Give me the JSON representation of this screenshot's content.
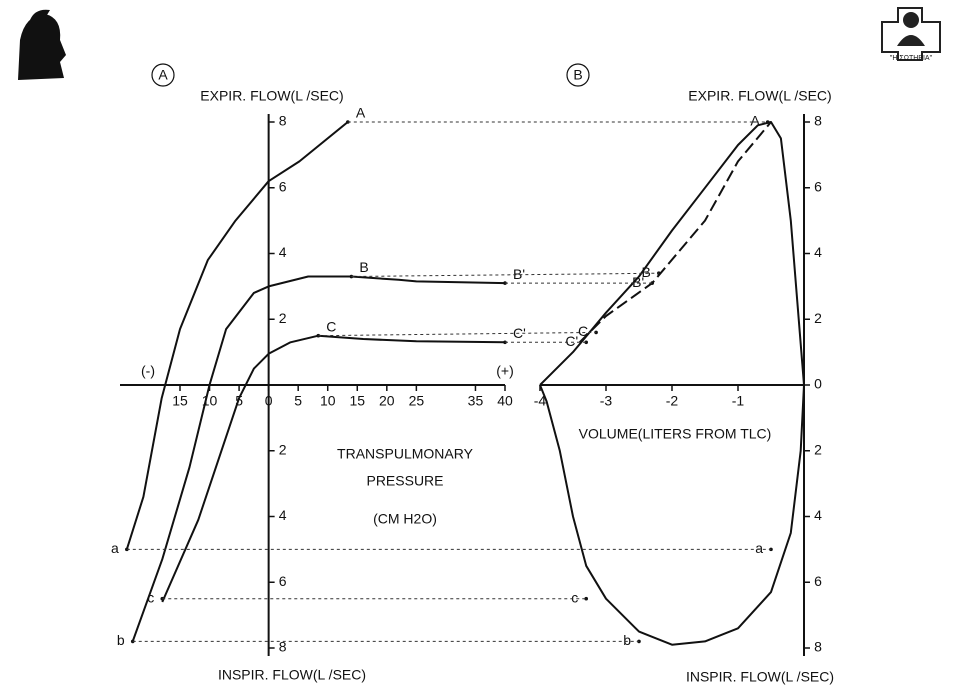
{
  "logo_text": "\"Η ΣΩΤΗΡΙΑ\"",
  "chart_data": [
    {
      "type": "line",
      "panel": "A",
      "y_label": "EXPIR. FLOW(L /SEC)",
      "y_label_bottom": "INSPIR. FLOW(L /SEC)",
      "x_label": [
        "TRANSPULMONARY",
        "PRESSURE",
        "(CM H2O)"
      ],
      "x_sign_labels": [
        "(-)",
        "(+)"
      ],
      "xlim": [
        -26,
        40
      ],
      "ylim": [
        -8,
        8
      ],
      "xticks": [
        {
          "value": -15,
          "label": "15"
        },
        {
          "value": -10,
          "label": "10"
        },
        {
          "value": -5,
          "label": "5"
        },
        0,
        5,
        10,
        15,
        20,
        25,
        35,
        40
      ],
      "yticks": [
        {
          "value": -8,
          "label": "8"
        },
        {
          "value": -6,
          "label": "6"
        },
        {
          "value": -4,
          "label": "4"
        },
        {
          "value": -2,
          "label": "2"
        },
        2,
        4,
        6,
        8
      ],
      "series": [
        {
          "color": "#111",
          "x": [
            -24,
            -21.2,
            -18.1,
            -15,
            -10.3,
            -5.6,
            0,
            5.2,
            13.4
          ],
          "values": [
            -5,
            -3.4,
            -0.4,
            1.7,
            3.8,
            5,
            6.2,
            6.8,
            8
          ]
        },
        {
          "color": "#111",
          "x": [
            -23,
            -18,
            -13.4,
            -10,
            -7.2,
            -2.5,
            0,
            6.7,
            14,
            22,
            25,
            40
          ],
          "values": [
            -7.8,
            -5.3,
            -2.5,
            0,
            1.7,
            2.8,
            3,
            3.3,
            3.3,
            3.2,
            3.15,
            3.1
          ]
        },
        {
          "color": "#111",
          "x": [
            -18,
            -11.9,
            -5,
            -2.5,
            0,
            3.7,
            8.4,
            16,
            25,
            40
          ],
          "values": [
            -6.6,
            -4.1,
            -0.4,
            0.5,
            0.95,
            1.3,
            1.5,
            1.4,
            1.33,
            1.3
          ]
        }
      ],
      "points": [
        {
          "label": "A",
          "x": 13.4,
          "y": 8
        },
        {
          "label": "B",
          "x": 14,
          "y": 3.3
        },
        {
          "label": "B'",
          "x": 40,
          "y": 3.1
        },
        {
          "label": "C",
          "x": 8.4,
          "y": 1.5
        },
        {
          "label": "C'",
          "x": 40,
          "y": 1.3
        },
        {
          "label": "a",
          "x": -24,
          "y": -5
        },
        {
          "label": "b",
          "x": -23,
          "y": -7.8
        },
        {
          "label": "c",
          "x": -18,
          "y": -6.5
        }
      ]
    },
    {
      "type": "line",
      "panel": "B",
      "y_label": "EXPIR. FLOW(L /SEC)",
      "y_label_bottom": "INSPIR. FLOW(L /SEC)",
      "x_label": [
        "VOLUME(LITERS FROM TLC)"
      ],
      "xlim": [
        -4,
        0
      ],
      "ylim": [
        -8,
        8
      ],
      "xticks": [
        -4,
        -3,
        -2,
        -1
      ],
      "yticks": [
        {
          "value": -8,
          "label": "8"
        },
        {
          "value": -6,
          "label": "6"
        },
        {
          "value": -4,
          "label": "4"
        },
        {
          "value": -2,
          "label": "2"
        },
        0,
        2,
        4,
        6,
        8
      ],
      "series": [
        {
          "color": "#111",
          "style": "solid",
          "x": [
            -4,
            -3.5,
            -3,
            -2.5,
            -2,
            -1.5,
            -1,
            -0.7,
            -0.5,
            -0.35,
            -0.2,
            -0.1,
            0
          ],
          "values": [
            0,
            1,
            2.2,
            3.3,
            4.7,
            6,
            7.3,
            7.9,
            8,
            7.5,
            5,
            2.5,
            0
          ]
        },
        {
          "color": "#111",
          "style": "solid",
          "x": [
            0,
            -0.05,
            -0.2,
            -0.5,
            -1,
            -1.5,
            -2,
            -2.5,
            -3,
            -3.3,
            -3.5,
            -3.7,
            -3.9,
            -4
          ],
          "values": [
            0,
            -2,
            -4.5,
            -6.3,
            -7.4,
            -7.8,
            -7.9,
            -7.5,
            -6.5,
            -5.5,
            -4,
            -2,
            -0.5,
            0
          ]
        },
        {
          "color": "#111",
          "style": "dashed",
          "x": [
            -3.4,
            -3,
            -2.3,
            -1.5,
            -1,
            -0.5
          ],
          "values": [
            1.3,
            2.1,
            3.1,
            5,
            6.8,
            8
          ]
        }
      ],
      "points": [
        {
          "label": "A",
          "x": -0.55,
          "y": 8
        },
        {
          "label": "B",
          "x": -2.2,
          "y": 3.4
        },
        {
          "label": "B'",
          "x": -2.3,
          "y": 3.1
        },
        {
          "label": "C",
          "x": -3.15,
          "y": 1.6
        },
        {
          "label": "C'",
          "x": -3.3,
          "y": 1.3
        },
        {
          "label": "a",
          "x": -0.5,
          "y": -5
        },
        {
          "label": "b",
          "x": -2.5,
          "y": -7.8
        },
        {
          "label": "c",
          "x": -3.3,
          "y": -6.5
        }
      ]
    }
  ]
}
